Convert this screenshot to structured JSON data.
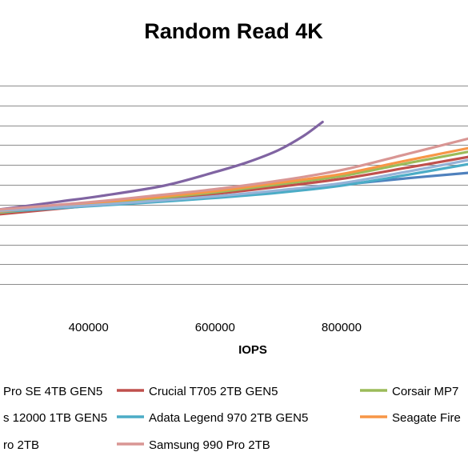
{
  "chart_data": {
    "type": "line",
    "title": "Random Read 4K",
    "xlabel": "IOPS",
    "ylabel": "",
    "xlim": [
      260000,
      1000000
    ],
    "ylim": [
      -150,
      450
    ],
    "x_ticks": [
      400000,
      600000,
      800000
    ],
    "x_tick_labels": [
      "400000",
      "600000",
      "800000"
    ],
    "y_grid": [
      -100,
      -50,
      0,
      50,
      100,
      150,
      200,
      250,
      300,
      350,
      400
    ],
    "grid": "horizontal",
    "legend_position": "bottom",
    "series": [
      {
        "name": "Pro SE 4TB GEN5",
        "color": "#4f81bd",
        "visible_name": "Pro SE 4TB GEN5",
        "points": [
          [
            260000,
            80
          ],
          [
            400000,
            98
          ],
          [
            500000,
            108
          ],
          [
            600000,
            120
          ],
          [
            700000,
            135
          ],
          [
            800000,
            150
          ],
          [
            900000,
            166
          ],
          [
            1000000,
            180
          ]
        ]
      },
      {
        "name": "Crucial T705 2TB GEN5",
        "color": "#c0504d",
        "visible_name": "Crucial T705 2TB GEN5",
        "points": [
          [
            260000,
            76
          ],
          [
            400000,
            97
          ],
          [
            500000,
            112
          ],
          [
            600000,
            127
          ],
          [
            700000,
            145
          ],
          [
            800000,
            165
          ],
          [
            900000,
            192
          ],
          [
            1000000,
            220
          ]
        ]
      },
      {
        "name": "Corsair MP7",
        "color": "#9bbb59",
        "visible_name": "Corsair MP7",
        "points": [
          [
            260000,
            80
          ],
          [
            400000,
            100
          ],
          [
            500000,
            115
          ],
          [
            600000,
            131
          ],
          [
            700000,
            151
          ],
          [
            800000,
            172
          ],
          [
            900000,
            203
          ],
          [
            1000000,
            233
          ]
        ]
      },
      {
        "name": "s 12000 1TB GEN5",
        "color": "#8064a2",
        "visible_name": "s 12000 1TB GEN5",
        "points": [
          [
            260000,
            88
          ],
          [
            350000,
            107
          ],
          [
            420000,
            122
          ],
          [
            520000,
            148
          ],
          [
            600000,
            182
          ],
          [
            650000,
            206
          ],
          [
            700000,
            237
          ],
          [
            740000,
            273
          ],
          [
            770000,
            308
          ]
        ]
      },
      {
        "name": "Adata Legend 970 2TB GEN5",
        "color": "#4bacc6",
        "visible_name": "Adata Legend 970 2TB GEN5",
        "points": [
          [
            260000,
            82
          ],
          [
            400000,
            96
          ],
          [
            500000,
            106
          ],
          [
            600000,
            117
          ],
          [
            700000,
            130
          ],
          [
            800000,
            148
          ],
          [
            900000,
            174
          ],
          [
            1000000,
            202
          ]
        ]
      },
      {
        "name": "Seagate Fire",
        "color": "#f79646",
        "visible_name": "Seagate Fire",
        "points": [
          [
            260000,
            83
          ],
          [
            400000,
            103
          ],
          [
            500000,
            118
          ],
          [
            600000,
            134
          ],
          [
            700000,
            155
          ],
          [
            800000,
            177
          ],
          [
            900000,
            210
          ],
          [
            1000000,
            242
          ]
        ]
      },
      {
        "name": "ro 2TB",
        "color": "#95b3d7",
        "visible_name": "ro 2TB",
        "points": [
          [
            260000,
            85
          ],
          [
            400000,
            98
          ],
          [
            500000,
            109
          ],
          [
            600000,
            121
          ],
          [
            700000,
            136
          ],
          [
            800000,
            154
          ],
          [
            900000,
            182
          ],
          [
            1000000,
            212
          ]
        ]
      },
      {
        "name": "Samsung 990 Pro 2TB",
        "color": "#d99694",
        "visible_name": "Samsung 990 Pro 2TB",
        "points": [
          [
            260000,
            88
          ],
          [
            400000,
            106
          ],
          [
            500000,
            122
          ],
          [
            600000,
            139
          ],
          [
            700000,
            160
          ],
          [
            800000,
            187
          ],
          [
            900000,
            226
          ],
          [
            1000000,
            266
          ]
        ]
      }
    ]
  },
  "legend": {
    "rows": [
      [
        {
          "label": "Pro SE 4TB GEN5",
          "color": "#4f81bd"
        },
        {
          "label": "Crucial T705 2TB GEN5",
          "color": "#c0504d"
        },
        {
          "label": "Corsair MP7",
          "color": "#9bbb59"
        }
      ],
      [
        {
          "label": "s 12000 1TB GEN5",
          "color": "#8064a2"
        },
        {
          "label": "Adata Legend 970 2TB GEN5",
          "color": "#4bacc6"
        },
        {
          "label": "Seagate Fire",
          "color": "#f79646"
        }
      ],
      [
        {
          "label": "ro 2TB",
          "color": "#95b3d7"
        },
        {
          "label": "Samsung 990 Pro 2TB",
          "color": "#d99694"
        }
      ]
    ]
  }
}
